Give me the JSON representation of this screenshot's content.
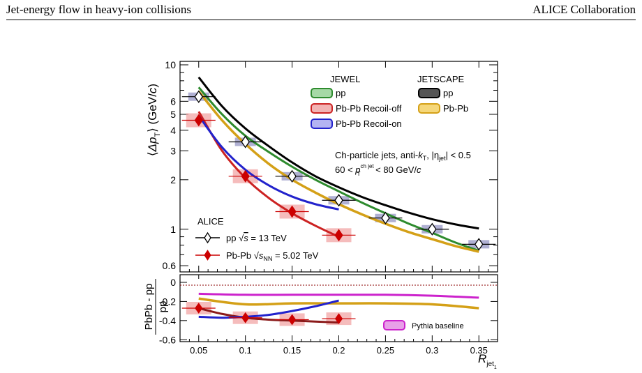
{
  "header": {
    "left": "Jet-energy flow in heavy-ion collisions",
    "right": "ALICE Collaboration"
  },
  "legend": {
    "jewel_title": "JEWEL",
    "jewel_pp": "pp",
    "jewel_recoil_off": "Pb-Pb Recoil-off",
    "jewel_recoil_on": "Pb-Pb Recoil-on",
    "jetscape_title": "JETSCAPE",
    "jetscape_pp": "pp",
    "jetscape_pbpb": "Pb-Pb",
    "alice_title": "ALICE",
    "alice_pp": "pp √s = 13 TeV",
    "alice_pbpb": "Pb-Pb √sNN = 5.02 TeV",
    "cuts_line1": "Ch-particle jets, anti-kT, |ηjet| < 0.5",
    "cuts_line2": "60 < pT ch jet < 80 GeV/c",
    "pythia_baseline": "Pythia baseline"
  },
  "colors": {
    "jewel_pp": "#2e8b2e",
    "jewel_recoil_off": "#cc2222",
    "jewel_recoil_on": "#2222cc",
    "jetscape_pp": "#000000",
    "jetscape_pbpb": "#d4a017",
    "alice_pbpb": "#cc0000",
    "pythia": "#cc22cc",
    "pp_syst_box": "#9c9cc8",
    "pbpb_syst_box": "#f2a6a6"
  },
  "chart_data": [
    {
      "type": "scatter",
      "panel": "upper",
      "ylabel": "⟨ΔpT⟩ (GeV/c)",
      "yscale": "log",
      "ylim": [
        0.55,
        10.5
      ],
      "xlim": [
        0.03,
        0.37
      ],
      "yticks": [
        0.6,
        1,
        2,
        3,
        4,
        5,
        6,
        10
      ],
      "series": [
        {
          "name": "pp √s = 13 TeV",
          "style": "markers",
          "x": [
            0.05,
            0.1,
            0.15,
            0.2,
            0.25,
            0.3,
            0.35
          ],
          "y": [
            6.4,
            3.4,
            2.1,
            1.5,
            1.17,
            1.0,
            0.81
          ]
        },
        {
          "name": "Pb-Pb √sNN = 5.02 TeV",
          "style": "markers",
          "x": [
            0.05,
            0.1,
            0.15,
            0.2
          ],
          "y": [
            4.6,
            2.1,
            1.28,
            0.92
          ]
        },
        {
          "name": "JEWEL pp",
          "style": "line",
          "x": [
            0.05,
            0.075,
            0.1,
            0.125,
            0.15,
            0.175,
            0.2,
            0.225,
            0.25,
            0.275,
            0.3,
            0.325,
            0.35
          ],
          "y": [
            7.3,
            5.0,
            3.7,
            2.95,
            2.4,
            2.0,
            1.7,
            1.45,
            1.25,
            1.08,
            0.95,
            0.83,
            0.74
          ]
        },
        {
          "name": "JEWEL Pb-Pb Recoil-off",
          "style": "line",
          "x": [
            0.05,
            0.075,
            0.1,
            0.125,
            0.15,
            0.175,
            0.2
          ],
          "y": [
            5.2,
            3.0,
            2.05,
            1.55,
            1.25,
            1.05,
            0.9
          ]
        },
        {
          "name": "JEWEL Pb-Pb Recoil-on",
          "style": "line",
          "x": [
            0.05,
            0.075,
            0.1,
            0.125,
            0.15,
            0.175,
            0.2
          ],
          "y": [
            4.9,
            3.15,
            2.3,
            1.85,
            1.58,
            1.42,
            1.32
          ]
        },
        {
          "name": "JETSCAPE pp",
          "style": "line",
          "x": [
            0.05,
            0.075,
            0.1,
            0.125,
            0.15,
            0.175,
            0.2,
            0.225,
            0.25,
            0.275,
            0.3,
            0.325,
            0.35
          ],
          "y": [
            8.4,
            5.6,
            4.1,
            3.2,
            2.55,
            2.1,
            1.8,
            1.57,
            1.4,
            1.26,
            1.15,
            1.07,
            1.01
          ]
        },
        {
          "name": "JETSCAPE Pb-Pb",
          "style": "line",
          "x": [
            0.05,
            0.075,
            0.1,
            0.125,
            0.15,
            0.175,
            0.2,
            0.225,
            0.25,
            0.275,
            0.3,
            0.325,
            0.35
          ],
          "y": [
            6.9,
            4.6,
            3.3,
            2.5,
            2.0,
            1.67,
            1.42,
            1.23,
            1.08,
            0.96,
            0.87,
            0.79,
            0.73
          ]
        }
      ]
    },
    {
      "type": "line",
      "panel": "lower",
      "ylabel": "PbPb - pp / pp",
      "xlabel": "Rjet1",
      "ylim": [
        -0.62,
        0.08
      ],
      "xlim": [
        0.03,
        0.37
      ],
      "yticks": [
        -0.6,
        -0.4,
        -0.2,
        0
      ],
      "xticks": [
        0.05,
        0.1,
        0.15,
        0.2,
        0.25,
        0.3,
        0.35
      ],
      "series": [
        {
          "name": "ALICE",
          "style": "markers",
          "x": [
            0.05,
            0.1,
            0.15,
            0.2
          ],
          "y": [
            -0.27,
            -0.37,
            -0.39,
            -0.38
          ]
        },
        {
          "name": "Pythia baseline",
          "style": "line",
          "x": [
            0.05,
            0.1,
            0.15,
            0.2,
            0.25,
            0.3,
            0.35
          ],
          "y": [
            -0.12,
            -0.13,
            -0.13,
            -0.13,
            -0.13,
            -0.14,
            -0.16
          ]
        },
        {
          "name": "JETSCAPE",
          "style": "line",
          "x": [
            0.05,
            0.1,
            0.15,
            0.2,
            0.25,
            0.3,
            0.35
          ],
          "y": [
            -0.17,
            -0.23,
            -0.22,
            -0.22,
            -0.22,
            -0.23,
            -0.27
          ]
        },
        {
          "name": "JEWEL Recoil-off",
          "style": "line",
          "x": [
            0.05,
            0.075,
            0.1,
            0.125,
            0.15,
            0.175,
            0.2
          ],
          "y": [
            -0.27,
            -0.33,
            -0.37,
            -0.39,
            -0.4,
            -0.41,
            -0.42
          ]
        },
        {
          "name": "JEWEL Recoil-on",
          "style": "line",
          "x": [
            0.05,
            0.075,
            0.1,
            0.125,
            0.15,
            0.175,
            0.2
          ],
          "y": [
            -0.36,
            -0.37,
            -0.36,
            -0.34,
            -0.3,
            -0.25,
            -0.19
          ]
        }
      ]
    }
  ]
}
